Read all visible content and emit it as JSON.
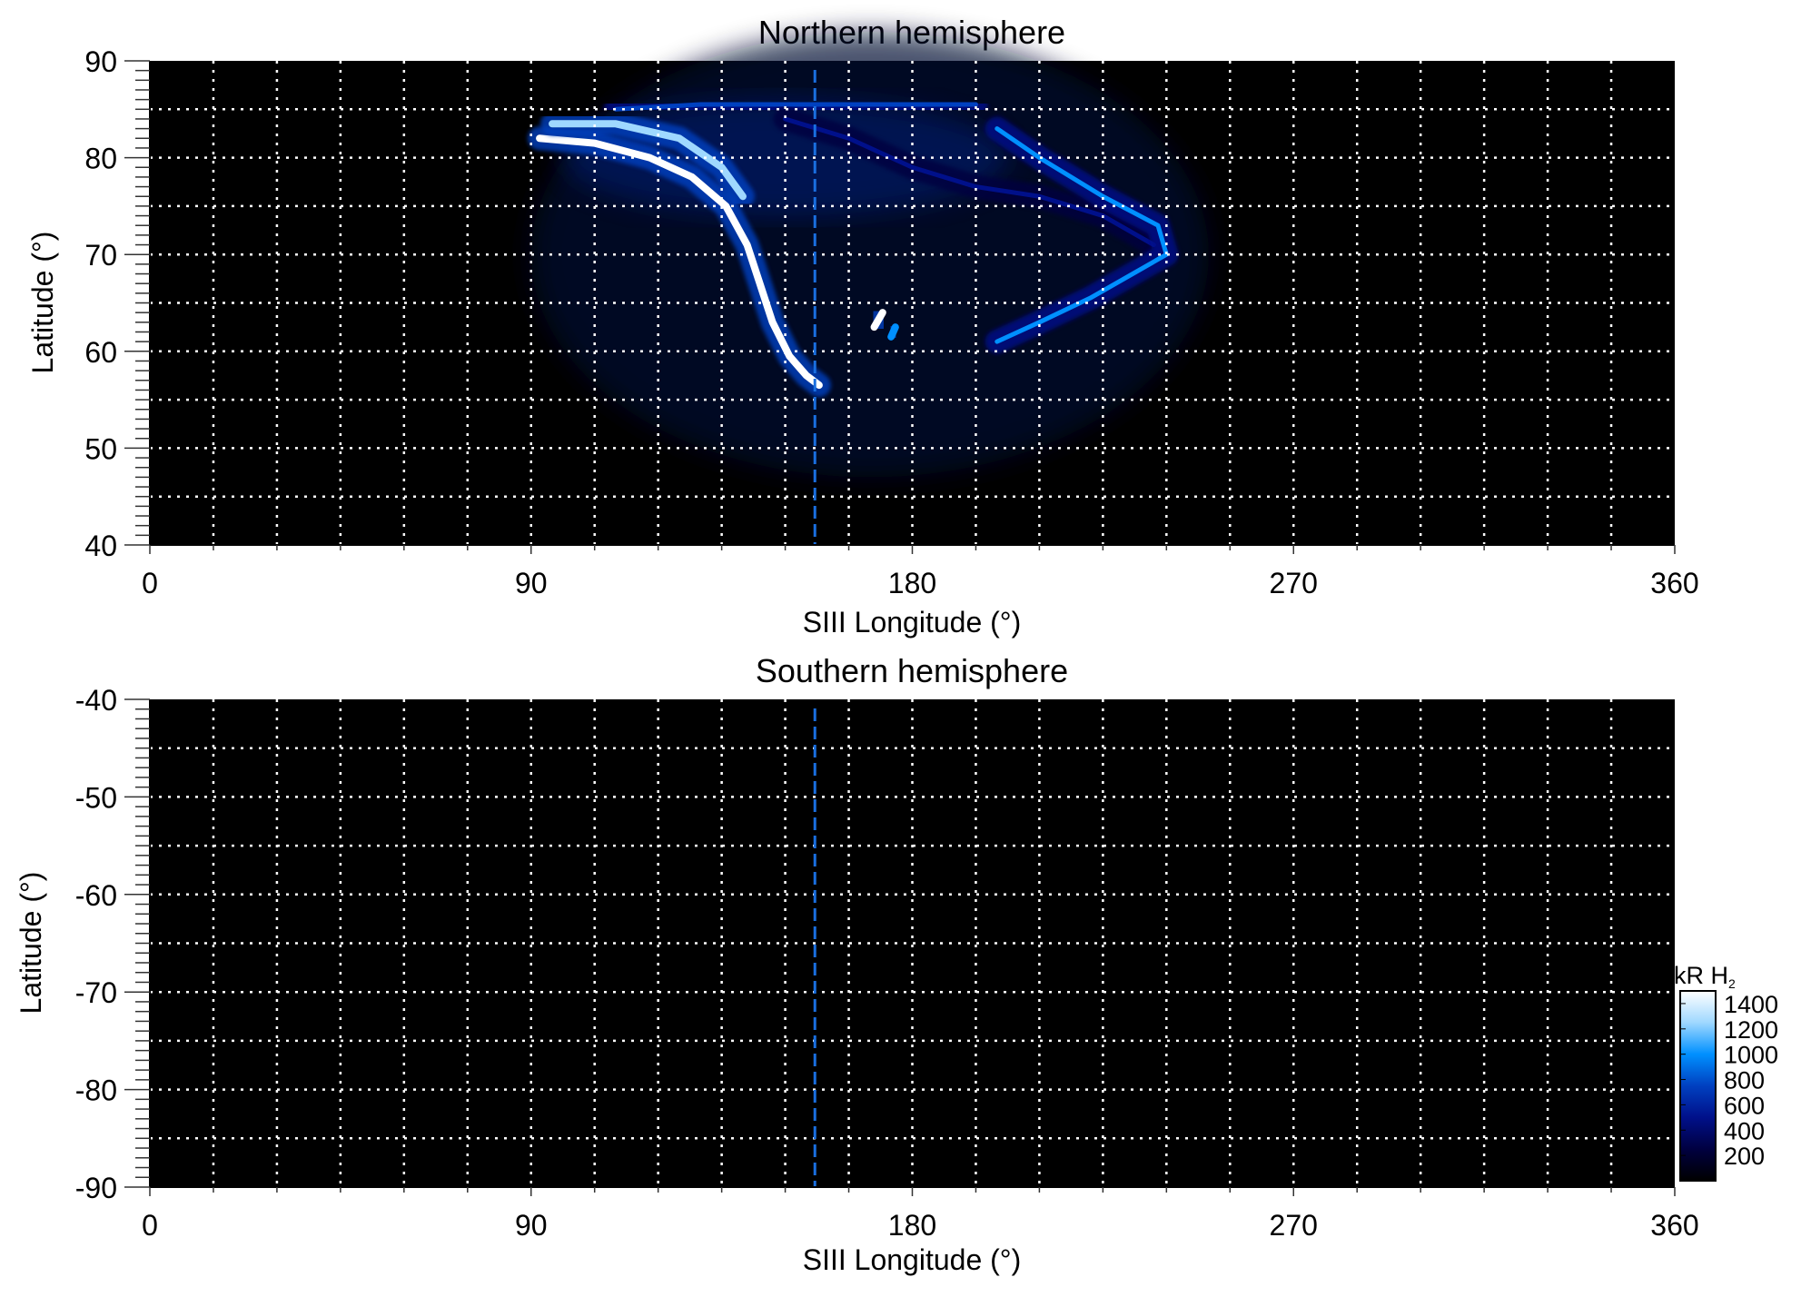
{
  "chart_data": [
    {
      "type": "heatmap",
      "title": "Northern hemisphere",
      "xlabel": "SIII Longitude (°)",
      "ylabel": "Latitude (°)",
      "xlim": [
        0,
        360
      ],
      "ylim": [
        40,
        90
      ],
      "xticks": [
        0,
        90,
        180,
        270,
        360
      ],
      "yticks": [
        40,
        50,
        60,
        70,
        80,
        90
      ],
      "grid": true,
      "grid_x_step": 15,
      "grid_y_step": 5,
      "reference_line_longitude": 157,
      "reference_line_color": "#1a6fe0",
      "emission_features": [
        {
          "points": [
            [
              92,
              82
            ],
            [
              105,
              81.5
            ],
            [
              118,
              80
            ],
            [
              128,
              78
            ],
            [
              136,
              75
            ],
            [
              141,
              71
            ],
            [
              144,
              67
            ],
            [
              147,
              63
            ],
            [
              151,
              59.5
            ],
            [
              155,
              57.5
            ],
            [
              158,
              56.5
            ]
          ],
          "intensity": 1400
        },
        {
          "points": [
            [
              95,
              83.5
            ],
            [
              110,
              83.5
            ],
            [
              125,
              82
            ],
            [
              135,
              79
            ],
            [
              140,
              76
            ]
          ],
          "intensity": 1200
        },
        {
          "points": [
            [
              110,
              85
            ],
            [
              130,
              85.5
            ],
            [
              150,
              85.5
            ],
            [
              170,
              85.5
            ],
            [
              195,
              85.5
            ]
          ],
          "intensity": 700
        },
        {
          "points": [
            [
              150,
              84
            ],
            [
              165,
              82
            ],
            [
              180,
              79
            ],
            [
              195,
              77
            ],
            [
              210,
              76
            ],
            [
              225,
              74
            ],
            [
              237,
              71
            ]
          ],
          "intensity": 600
        },
        {
          "points": [
            [
              200,
              61
            ],
            [
              210,
              63
            ],
            [
              222,
              65.5
            ],
            [
              232,
              68
            ],
            [
              240,
              70
            ],
            [
              238,
              73
            ],
            [
              225,
              76
            ],
            [
              210,
              80
            ],
            [
              200,
              83
            ]
          ],
          "intensity": 900
        },
        {
          "points": [
            [
              171,
              62.5
            ],
            [
              173,
              64
            ]
          ],
          "intensity": 1400
        },
        {
          "points": [
            [
              175,
              61.5
            ],
            [
              176,
              62.5
            ]
          ],
          "intensity": 1100
        }
      ]
    },
    {
      "type": "heatmap",
      "title": "Southern hemisphere",
      "xlabel": "SIII Longitude (°)",
      "ylabel": "Latitude (°)",
      "xlim": [
        0,
        360
      ],
      "ylim": [
        -90,
        -40
      ],
      "xticks": [
        0,
        90,
        180,
        270,
        360
      ],
      "yticks": [
        -90,
        -80,
        -70,
        -60,
        -50,
        -40
      ],
      "grid": true,
      "grid_x_step": 15,
      "grid_y_step": 5,
      "reference_line_longitude": 157,
      "reference_line_color": "#1a6fe0",
      "emission_features": []
    }
  ],
  "colorbar": {
    "label": "kR H",
    "label_subscript": "2",
    "ticks": [
      200,
      400,
      600,
      800,
      1000,
      1200,
      1400
    ],
    "range": [
      0,
      1500
    ],
    "colors": [
      "#000000",
      "#000040",
      "#00108a",
      "#0040c0",
      "#0090ff",
      "#9fd8ff",
      "#ffffff"
    ]
  }
}
